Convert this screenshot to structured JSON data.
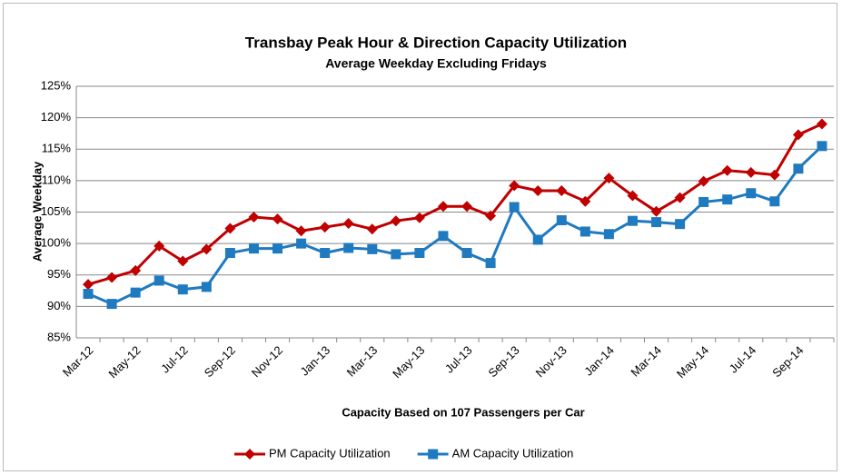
{
  "chart_data": {
    "type": "line",
    "title": "Transbay Peak Hour & Direction Capacity Utilization",
    "subtitle": "Average Weekday Excluding Fridays",
    "x_label": "Capacity Based on 107 Passengers per Car",
    "y_label": "Average Weekday",
    "categories": [
      "Mar-12",
      null,
      "May-12",
      null,
      "Jul-12",
      null,
      "Sep-12",
      null,
      "Nov-12",
      null,
      "Jan-13",
      null,
      "Mar-13",
      null,
      "May-13",
      null,
      "Jul-13",
      null,
      "Sep-13",
      null,
      "Nov-13",
      null,
      "Jan-14",
      null,
      "Mar-14",
      null,
      "May-14",
      null,
      "Jul-14",
      null,
      "Sep-14",
      null
    ],
    "series": [
      {
        "name": "PM Capacity Utilization",
        "color": "#c00000",
        "marker": "diamond",
        "values": [
          93.5,
          94.6,
          95.7,
          99.6,
          97.2,
          99.1,
          102.4,
          104.2,
          103.9,
          102.0,
          102.6,
          103.2,
          102.3,
          103.6,
          104.1,
          105.9,
          105.9,
          104.4,
          109.2,
          108.4,
          108.4,
          106.7,
          110.4,
          107.6,
          105.1,
          107.3,
          109.9,
          111.6,
          111.3,
          110.9,
          117.3,
          119.0
        ]
      },
      {
        "name": "AM Capacity Utilization",
        "color": "#1f7ac0",
        "marker": "square",
        "values": [
          92.0,
          90.4,
          92.2,
          94.1,
          92.7,
          93.1,
          98.5,
          99.2,
          99.2,
          100.0,
          98.5,
          99.3,
          99.1,
          98.3,
          98.5,
          101.2,
          98.5,
          96.9,
          105.8,
          100.6,
          103.7,
          101.9,
          101.5,
          103.6,
          103.4,
          103.1,
          106.6,
          107.0,
          108.0,
          106.7,
          111.9,
          115.5
        ]
      }
    ],
    "ylim": [
      85,
      125
    ],
    "yticks": [
      {
        "value": 85,
        "label": "85%"
      },
      {
        "value": 90,
        "label": "90%"
      },
      {
        "value": 95,
        "label": "95%"
      },
      {
        "value": 100,
        "label": "100%"
      },
      {
        "value": 105,
        "label": "105%"
      },
      {
        "value": 110,
        "label": "110%"
      },
      {
        "value": 115,
        "label": "115%"
      },
      {
        "value": 120,
        "label": "120%"
      },
      {
        "value": 125,
        "label": "125%"
      }
    ],
    "grid": true,
    "legend": "bottom"
  }
}
